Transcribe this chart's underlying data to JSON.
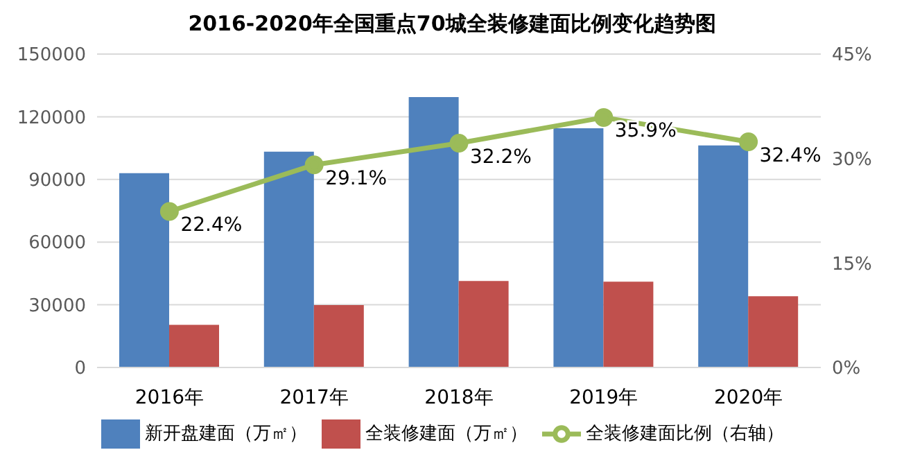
{
  "chart_data": {
    "type": "bar",
    "title": "2016-2020年全国重点70城全装修建面比例变化趋势图",
    "categories": [
      "2016年",
      "2017年",
      "2018年",
      "2019年",
      "2020年"
    ],
    "series": [
      {
        "name": "新开盘建面（万㎡）",
        "color": "#4f81bd",
        "values": [
          93000,
          103300,
          129400,
          114500,
          106300
        ]
      },
      {
        "name": "全装修建面（万㎡）",
        "color": "#c0504d",
        "values": [
          20400,
          29900,
          41400,
          41100,
          34100
        ]
      },
      {
        "name": "全装修建面比例（右轴）",
        "type": "line",
        "axis": "y2",
        "color": "#9bbb59",
        "values": [
          22.4,
          29.1,
          32.2,
          35.9,
          32.4
        ],
        "value_labels": [
          "22.4%",
          "29.1%",
          "32.2%",
          "35.9%",
          "32.4%"
        ]
      }
    ],
    "ylim": [
      0,
      150000
    ],
    "yticks": [
      0,
      30000,
      60000,
      90000,
      120000,
      150000
    ],
    "y2lim": [
      0,
      45
    ],
    "y2ticks": [
      {
        "value": 0,
        "label": "0%"
      },
      {
        "value": 15,
        "label": "15%"
      },
      {
        "value": 30,
        "label": "30%"
      },
      {
        "value": 45,
        "label": "45%"
      }
    ],
    "grid": "y",
    "legend": "bottom",
    "marker": "circle"
  }
}
